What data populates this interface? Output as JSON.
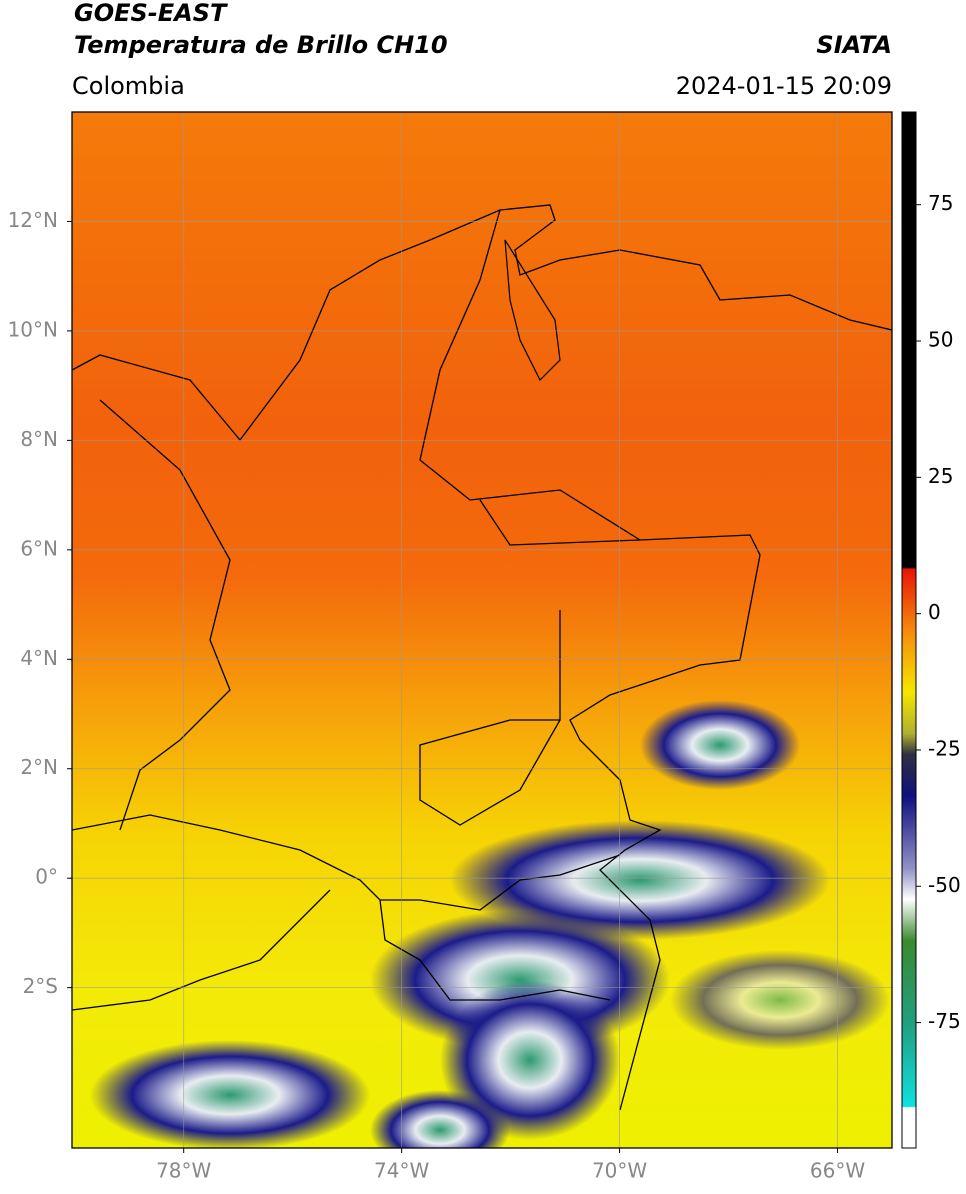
{
  "header": {
    "title_lines": [
      "GOES-EAST",
      "Temperatura de Brillo CH10"
    ],
    "source": "SIATA",
    "region": "Colombia",
    "datetime": "2024-01-15 20:09"
  },
  "map": {
    "xlim": [
      -80.05,
      -65
    ],
    "ylim": [
      -4.93,
      14
    ],
    "xticks": [
      {
        "value": -78,
        "label": "78°W"
      },
      {
        "value": -74,
        "label": "74°W"
      },
      {
        "value": -70,
        "label": "70°W"
      },
      {
        "value": -66,
        "label": "66°W"
      }
    ],
    "yticks": [
      {
        "value": 12,
        "label": "12°N"
      },
      {
        "value": 10,
        "label": "10°N"
      },
      {
        "value": 8,
        "label": "8°N"
      },
      {
        "value": 6,
        "label": "6°N"
      },
      {
        "value": 4,
        "label": "4°N"
      },
      {
        "value": 2,
        "label": "2°N"
      },
      {
        "value": 0,
        "label": "0°"
      },
      {
        "value": -2,
        "label": "2°S"
      }
    ],
    "grid": true
  },
  "colorbar": {
    "vlim": [
      -98,
      92
    ],
    "ticks": [
      75,
      50,
      25,
      0,
      -25,
      -50,
      -75
    ]
  }
}
